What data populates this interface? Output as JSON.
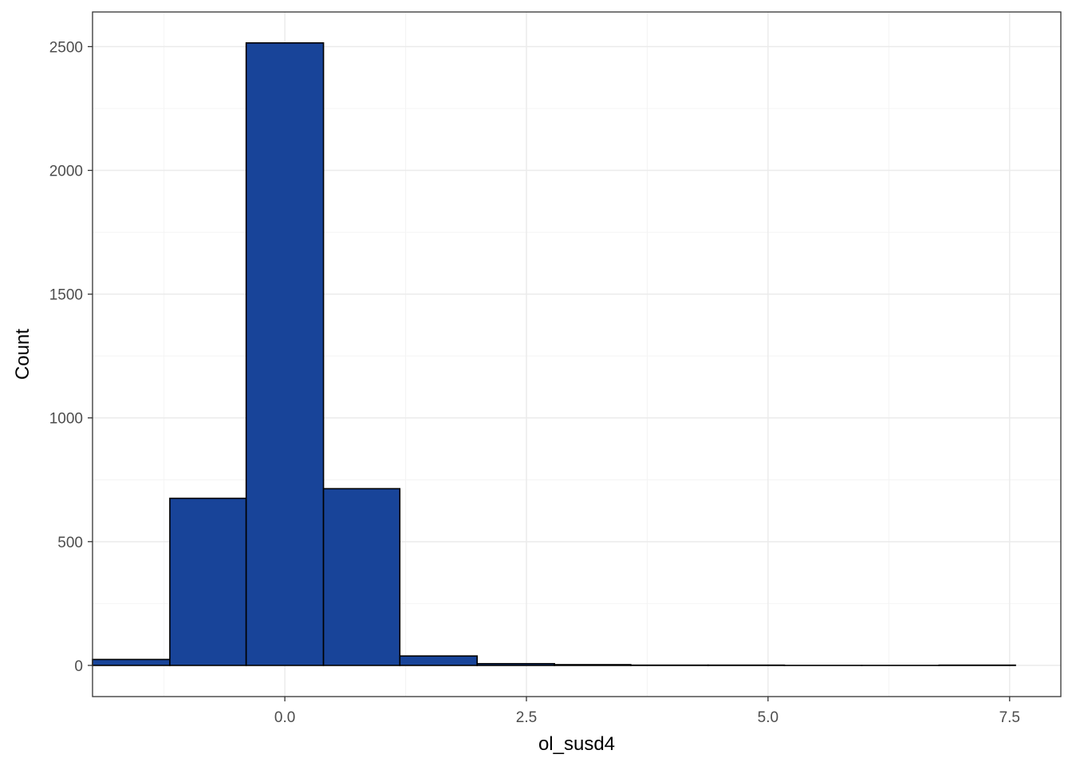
{
  "chart_data": {
    "type": "bar",
    "subtype": "histogram",
    "title": "",
    "xlabel": "ol_susd4",
    "ylabel": "Count",
    "xlim": [
      -1.99,
      8.03
    ],
    "ylim": [
      -126,
      2640
    ],
    "x_ticks": [
      0.0,
      2.5,
      5.0,
      7.5
    ],
    "x_tick_labels": [
      "0.0",
      "2.5",
      "5.0",
      "7.5"
    ],
    "y_ticks": [
      0,
      500,
      1000,
      1500,
      2000,
      2500
    ],
    "y_tick_labels": [
      "0",
      "500",
      "1000",
      "1500",
      "2000",
      "2500"
    ],
    "grid": true,
    "legend": "none",
    "bins": [
      {
        "x0": -1.99,
        "x1": -1.19,
        "count": 24
      },
      {
        "x0": -1.19,
        "x1": -0.4,
        "count": 675
      },
      {
        "x0": -0.4,
        "x1": 0.4,
        "count": 2515
      },
      {
        "x0": 0.4,
        "x1": 1.19,
        "count": 714
      },
      {
        "x0": 1.19,
        "x1": 1.99,
        "count": 38
      },
      {
        "x0": 1.99,
        "x1": 2.79,
        "count": 7
      },
      {
        "x0": 2.79,
        "x1": 3.58,
        "count": 3
      },
      {
        "x0": 3.58,
        "x1": 4.38,
        "count": 1
      },
      {
        "x0": 4.38,
        "x1": 5.17,
        "count": 1
      },
      {
        "x0": 5.17,
        "x1": 5.97,
        "count": 0
      },
      {
        "x0": 5.97,
        "x1": 6.77,
        "count": 0
      },
      {
        "x0": 6.77,
        "x1": 7.56,
        "count": 1
      }
    ],
    "colors": {
      "fill": "#184499",
      "outline": "#000000",
      "grid_major": "#ebebeb",
      "grid_minor": "#f4f4f4",
      "panel_border": "#333333",
      "tick_label": "#4d4d4d"
    }
  }
}
